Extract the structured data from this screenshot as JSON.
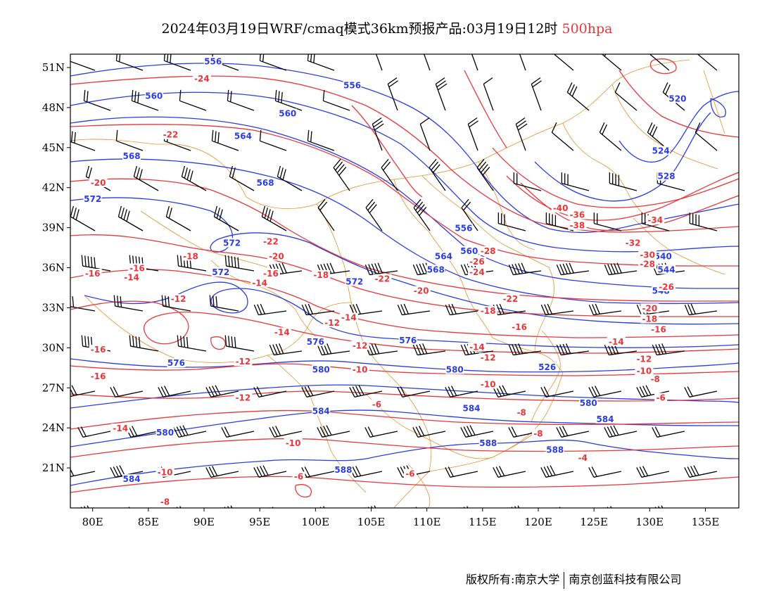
{
  "title": {
    "text": "2024年03月19日WRF/cmaq模式36km预报产品:03月19日12时",
    "level": "500hpa",
    "level_color": "#e8363a"
  },
  "map": {
    "lon_range": [
      78,
      138
    ],
    "lat_range": [
      18,
      52
    ],
    "lon_ticks": [
      "80E",
      "85E",
      "90E",
      "95E",
      "100E",
      "105E",
      "110E",
      "115E",
      "120E",
      "125E",
      "130E",
      "135E"
    ],
    "lon_tick_values": [
      80,
      85,
      90,
      95,
      100,
      105,
      110,
      115,
      120,
      125,
      130,
      135
    ],
    "lat_ticks": [
      "21N",
      "24N",
      "27N",
      "30N",
      "33N",
      "36N",
      "39N",
      "42N",
      "45N",
      "48N",
      "51N"
    ],
    "lat_tick_values": [
      21,
      24,
      27,
      30,
      33,
      36,
      39,
      42,
      45,
      48,
      51
    ],
    "height_color": "#2b3de0",
    "temperature_color": "#e8363a",
    "boundary_color": "#e0902a",
    "barb_color": "#000000"
  },
  "height_labels": [
    {
      "t": "556",
      "lon": 90.8,
      "lat": 51.4
    },
    {
      "t": "556",
      "lon": 103.3,
      "lat": 49.6
    },
    {
      "t": "560",
      "lon": 85.5,
      "lat": 48.8
    },
    {
      "t": "560",
      "lon": 97.5,
      "lat": 47.5
    },
    {
      "t": "564",
      "lon": 93.5,
      "lat": 45.8
    },
    {
      "t": "568",
      "lon": 83.5,
      "lat": 44.3
    },
    {
      "t": "568",
      "lon": 95.5,
      "lat": 42.3
    },
    {
      "t": "572",
      "lon": 80,
      "lat": 41.1
    },
    {
      "t": "572",
      "lon": 92.5,
      "lat": 37.8
    },
    {
      "t": "572",
      "lon": 91.5,
      "lat": 35.6
    },
    {
      "t": "572",
      "lon": 103.5,
      "lat": 34.9
    },
    {
      "t": "568",
      "lon": 110.8,
      "lat": 35.8
    },
    {
      "t": "564",
      "lon": 111.5,
      "lat": 36.8
    },
    {
      "t": "560",
      "lon": 113.8,
      "lat": 37.2
    },
    {
      "t": "556",
      "lon": 113.3,
      "lat": 38.9
    },
    {
      "t": "576",
      "lon": 87.5,
      "lat": 28.8
    },
    {
      "t": "576",
      "lon": 100,
      "lat": 30.4
    },
    {
      "t": "576",
      "lon": 108.3,
      "lat": 30.5
    },
    {
      "t": "580",
      "lon": 100.5,
      "lat": 28.3
    },
    {
      "t": "580",
      "lon": 112.5,
      "lat": 28.3
    },
    {
      "t": "580",
      "lon": 86.5,
      "lat": 23.6
    },
    {
      "t": "580",
      "lon": 124.5,
      "lat": 25.8
    },
    {
      "t": "584",
      "lon": 100.5,
      "lat": 25.2
    },
    {
      "t": "584",
      "lon": 114,
      "lat": 25.4
    },
    {
      "t": "584",
      "lon": 83.5,
      "lat": 20.1
    },
    {
      "t": "584",
      "lon": 126,
      "lat": 24.6
    },
    {
      "t": "588",
      "lon": 102.5,
      "lat": 20.8
    },
    {
      "t": "588",
      "lon": 115.5,
      "lat": 22.8
    },
    {
      "t": "588",
      "lon": 121.5,
      "lat": 22.3
    },
    {
      "t": "520",
      "lon": 132.5,
      "lat": 48.6
    },
    {
      "t": "524",
      "lon": 131,
      "lat": 44.7
    },
    {
      "t": "528",
      "lon": 131.5,
      "lat": 42.8
    },
    {
      "t": "548",
      "lon": 131,
      "lat": 34.2
    },
    {
      "t": "540",
      "lon": 131.2,
      "lat": 36.8
    },
    {
      "t": "544",
      "lon": 131.5,
      "lat": 35.8
    },
    {
      "t": "526",
      "lon": 120.8,
      "lat": 28.5
    }
  ],
  "temperature_labels": [
    {
      "t": "-24",
      "lon": 89.8,
      "lat": 50.1
    },
    {
      "t": "-22",
      "lon": 87,
      "lat": 45.9
    },
    {
      "t": "-20",
      "lon": 80.5,
      "lat": 42.3
    },
    {
      "t": "-22",
      "lon": 96,
      "lat": 37.9
    },
    {
      "t": "-20",
      "lon": 96.5,
      "lat": 36.8
    },
    {
      "t": "-18",
      "lon": 88.8,
      "lat": 36.8
    },
    {
      "t": "-16",
      "lon": 80,
      "lat": 35.5
    },
    {
      "t": "-16",
      "lon": 84,
      "lat": 35.9
    },
    {
      "t": "-14",
      "lon": 83.5,
      "lat": 35.2
    },
    {
      "t": "-16",
      "lon": 96,
      "lat": 35.5
    },
    {
      "t": "-14",
      "lon": 95,
      "lat": 34.8
    },
    {
      "t": "-12",
      "lon": 87.7,
      "lat": 33.6
    },
    {
      "t": "-18",
      "lon": 100.5,
      "lat": 35.4
    },
    {
      "t": "-22",
      "lon": 106,
      "lat": 35.1
    },
    {
      "t": "-20",
      "lon": 109.5,
      "lat": 34.2
    },
    {
      "t": "-24",
      "lon": 114.5,
      "lat": 35.6
    },
    {
      "t": "-26",
      "lon": 114.5,
      "lat": 36.4
    },
    {
      "t": "-28",
      "lon": 115.5,
      "lat": 37.2
    },
    {
      "t": "-22",
      "lon": 117.5,
      "lat": 33.6
    },
    {
      "t": "-18",
      "lon": 115.5,
      "lat": 32.7
    },
    {
      "t": "-16",
      "lon": 118.3,
      "lat": 31.5
    },
    {
      "t": "-14",
      "lon": 114.5,
      "lat": 30
    },
    {
      "t": "-12",
      "lon": 115.5,
      "lat": 29.2
    },
    {
      "t": "-10",
      "lon": 115.5,
      "lat": 27.2
    },
    {
      "t": "-8",
      "lon": 118.5,
      "lat": 25.1
    },
    {
      "t": "-8",
      "lon": 120,
      "lat": 23.5
    },
    {
      "t": "-6",
      "lon": 105.5,
      "lat": 25.7
    },
    {
      "t": "-6",
      "lon": 108.5,
      "lat": 20.5
    },
    {
      "t": "-6",
      "lon": 98.5,
      "lat": 20.3
    },
    {
      "t": "-4",
      "lon": 124,
      "lat": 21.7
    },
    {
      "t": "-6",
      "lon": 131,
      "lat": 26.2
    },
    {
      "t": "-8",
      "lon": 130.5,
      "lat": 27.6
    },
    {
      "t": "-10",
      "lon": 129.5,
      "lat": 28.2
    },
    {
      "t": "-12",
      "lon": 129.5,
      "lat": 29.1
    },
    {
      "t": "-14",
      "lon": 127,
      "lat": 30.4
    },
    {
      "t": "-16",
      "lon": 130.8,
      "lat": 31.3
    },
    {
      "t": "-18",
      "lon": 130,
      "lat": 32.1
    },
    {
      "t": "-20",
      "lon": 130,
      "lat": 32.9
    },
    {
      "t": "-26",
      "lon": 131.5,
      "lat": 34.5
    },
    {
      "t": "-28",
      "lon": 129.8,
      "lat": 36.2
    },
    {
      "t": "-30",
      "lon": 129.8,
      "lat": 36.9
    },
    {
      "t": "-32",
      "lon": 128.5,
      "lat": 37.8
    },
    {
      "t": "-34",
      "lon": 130.5,
      "lat": 39.5
    },
    {
      "t": "-36",
      "lon": 123.5,
      "lat": 39.9
    },
    {
      "t": "-38",
      "lon": 123.5,
      "lat": 39.1
    },
    {
      "t": "-40",
      "lon": 122,
      "lat": 40.4
    },
    {
      "t": "-14",
      "lon": 97,
      "lat": 31.1
    },
    {
      "t": "-12",
      "lon": 101.5,
      "lat": 31.8
    },
    {
      "t": "-14",
      "lon": 103,
      "lat": 32.2
    },
    {
      "t": "-12",
      "lon": 104,
      "lat": 30.1
    },
    {
      "t": "-10",
      "lon": 104,
      "lat": 28.3
    },
    {
      "t": "-12",
      "lon": 93.5,
      "lat": 28.9
    },
    {
      "t": "-12",
      "lon": 93.5,
      "lat": 26.2
    },
    {
      "t": "-16",
      "lon": 80.5,
      "lat": 29.8
    },
    {
      "t": "-16",
      "lon": 80.5,
      "lat": 27.8
    },
    {
      "t": "-14",
      "lon": 82.5,
      "lat": 23.9
    },
    {
      "t": "-10",
      "lon": 98,
      "lat": 22.8
    },
    {
      "t": "-10",
      "lon": 86.5,
      "lat": 20.6
    },
    {
      "t": "-8",
      "lon": 86.5,
      "lat": 18.4
    }
  ],
  "copyright": {
    "left": "版权所有:南京大学",
    "right": "南京创蓝科技有限公司"
  }
}
